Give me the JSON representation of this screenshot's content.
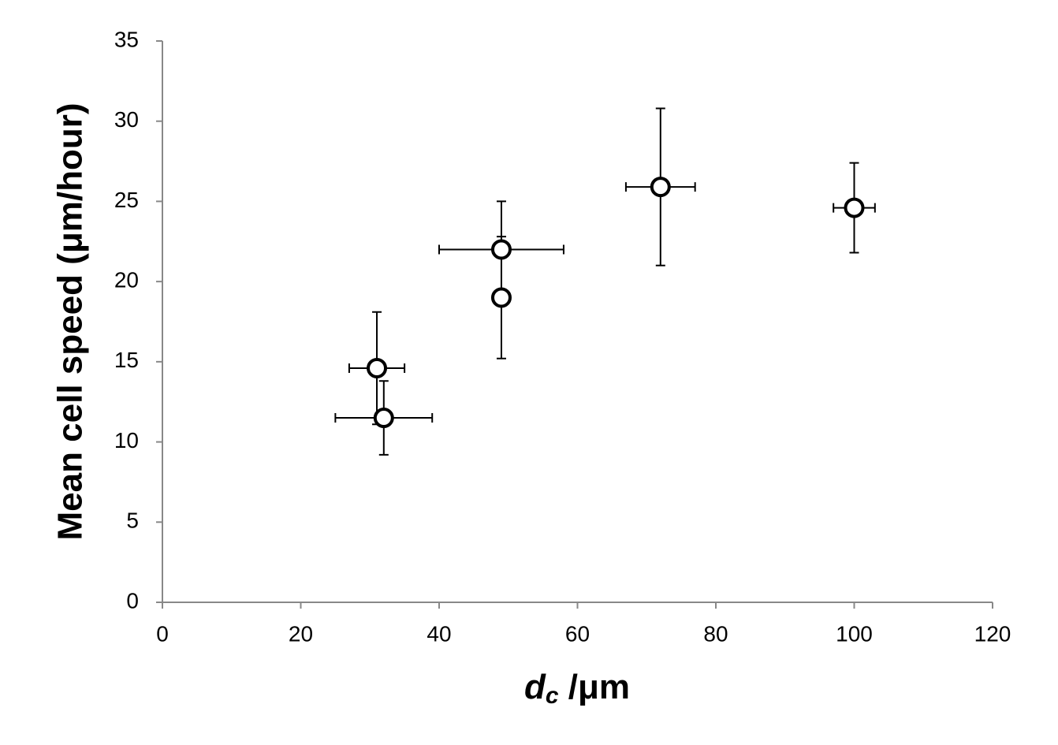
{
  "chart_data": {
    "type": "scatter",
    "ylabel": "Mean cell speed (μm/hour)",
    "xlabel_parts": [
      "d",
      "c",
      " /μm"
    ],
    "x": [
      31,
      32,
      49,
      49,
      72,
      100
    ],
    "series": [
      {
        "color": "#000000",
        "values": [
          14.6,
          11.5,
          22,
          19,
          25.9,
          24.6
        ],
        "yerr": [
          3.5,
          2.3,
          3,
          3.8,
          4.9,
          2.8
        ],
        "xerr": [
          4,
          7,
          9,
          0,
          5,
          3
        ]
      }
    ],
    "xlim": [
      0,
      120
    ],
    "xticks": [
      0,
      20,
      40,
      60,
      80,
      100,
      120
    ],
    "ylim": [
      0,
      35
    ],
    "yticks": [
      0,
      5,
      10,
      15,
      20,
      25,
      30,
      35
    ],
    "grid": false
  }
}
